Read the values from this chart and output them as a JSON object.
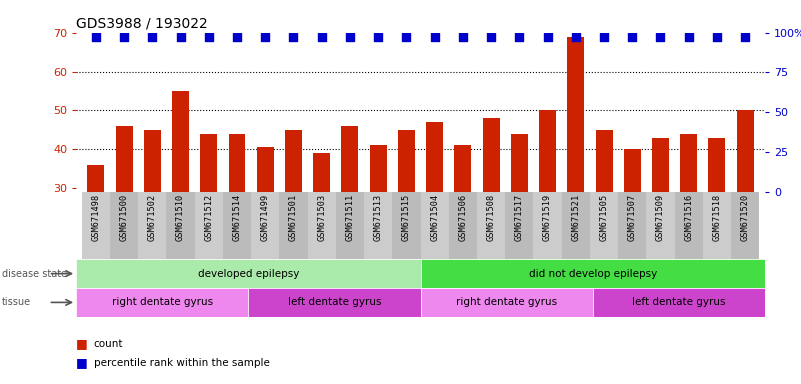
{
  "title": "GDS3988 / 193022",
  "samples": [
    "GSM671498",
    "GSM671500",
    "GSM671502",
    "GSM671510",
    "GSM671512",
    "GSM671514",
    "GSM671499",
    "GSM671501",
    "GSM671503",
    "GSM671511",
    "GSM671513",
    "GSM671515",
    "GSM671504",
    "GSM671506",
    "GSM671508",
    "GSM671517",
    "GSM671519",
    "GSM671521",
    "GSM671505",
    "GSM671507",
    "GSM671509",
    "GSM671516",
    "GSM671518",
    "GSM671520"
  ],
  "bar_values": [
    36,
    46,
    45,
    55,
    44,
    44,
    40.5,
    45,
    39,
    46,
    41,
    45,
    47,
    41,
    48,
    44,
    50,
    69,
    45,
    40,
    43,
    44,
    43,
    50
  ],
  "percentile_values": [
    69,
    69,
    69,
    69,
    69,
    69,
    69,
    69,
    69,
    69,
    69,
    69,
    69,
    69,
    69,
    69,
    69,
    69,
    69,
    69,
    69,
    69,
    69,
    69
  ],
  "bar_color": "#CC2200",
  "dot_color": "#0000CC",
  "ylim_left": [
    29,
    70
  ],
  "ylim_right": [
    0,
    100
  ],
  "yticks_left": [
    30,
    40,
    50,
    60,
    70
  ],
  "yticks_right": [
    0,
    25,
    50,
    75,
    100
  ],
  "ytick_labels_right": [
    "0",
    "25",
    "50",
    "75",
    "100%"
  ],
  "grid_lines": [
    40,
    50,
    60
  ],
  "disease_state_groups": [
    {
      "label": "developed epilepsy",
      "start": 0,
      "end": 11,
      "color": "#AAEAAA"
    },
    {
      "label": "did not develop epilepsy",
      "start": 12,
      "end": 23,
      "color": "#44DD44"
    }
  ],
  "tissue_groups": [
    {
      "label": "right dentate gyrus",
      "start": 0,
      "end": 5,
      "color": "#EE88EE"
    },
    {
      "label": "left dentate gyrus",
      "start": 6,
      "end": 11,
      "color": "#CC44CC"
    },
    {
      "label": "right dentate gyrus",
      "start": 12,
      "end": 17,
      "color": "#EE88EE"
    },
    {
      "label": "left dentate gyrus",
      "start": 18,
      "end": 23,
      "color": "#CC44CC"
    }
  ],
  "background_color": "#FFFFFF",
  "bar_width": 0.6,
  "dot_size": 30,
  "dot_marker": "s",
  "ylabel_left_color": "#CC2200",
  "ylabel_right_color": "#0000CC",
  "title_fontsize": 10,
  "xtick_bg_color": "#CCCCCC",
  "n_samples": 24
}
